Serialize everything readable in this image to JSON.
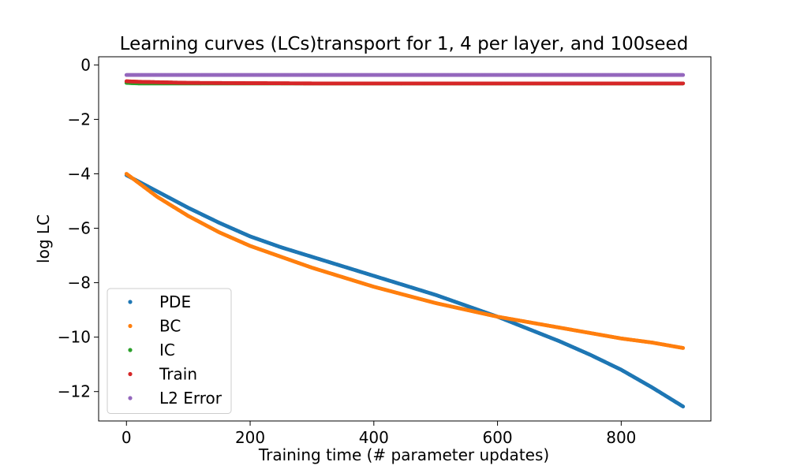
{
  "chart_data": {
    "type": "scatter",
    "title": "Learning curves (LCs)transport for 1, 4 per layer, and 100seed",
    "xlabel": "Training time (# parameter updates)",
    "ylabel": "log LC",
    "xlim": [
      -45,
      945
    ],
    "ylim": [
      -13.08,
      0.3
    ],
    "xticks": [
      0,
      200,
      400,
      600,
      800
    ],
    "yticks": [
      0,
      -2,
      -4,
      -6,
      -8,
      -10,
      -12
    ],
    "xtick_labels": [
      "0",
      "200",
      "400",
      "600",
      "800"
    ],
    "ytick_labels": [
      "0",
      "−2",
      "−4",
      "−6",
      "−8",
      "−10",
      "−12"
    ],
    "legend_position": "lower-left",
    "series": [
      {
        "name": "PDE",
        "color": "#1f77b4",
        "x": [
          0,
          50,
          100,
          150,
          200,
          250,
          300,
          350,
          400,
          450,
          500,
          550,
          600,
          650,
          700,
          750,
          800,
          850,
          900
        ],
        "y": [
          -4.05,
          -4.65,
          -5.25,
          -5.8,
          -6.3,
          -6.7,
          -7.05,
          -7.4,
          -7.75,
          -8.1,
          -8.45,
          -8.85,
          -9.25,
          -9.7,
          -10.15,
          -10.65,
          -11.2,
          -11.85,
          -12.55
        ]
      },
      {
        "name": "BC",
        "color": "#ff7f0e",
        "x": [
          0,
          50,
          100,
          150,
          200,
          250,
          300,
          350,
          400,
          450,
          500,
          550,
          600,
          650,
          700,
          750,
          800,
          850,
          900
        ],
        "y": [
          -4.0,
          -4.85,
          -5.55,
          -6.15,
          -6.65,
          -7.05,
          -7.45,
          -7.8,
          -8.15,
          -8.45,
          -8.75,
          -9.0,
          -9.25,
          -9.45,
          -9.65,
          -9.85,
          -10.05,
          -10.2,
          -10.4
        ]
      },
      {
        "name": "IC",
        "color": "#2ca02c",
        "x": [
          0,
          20,
          60,
          100,
          200,
          300,
          400,
          500,
          600,
          700,
          800,
          900
        ],
        "y": [
          -0.66,
          -0.68,
          -0.68,
          -0.68,
          -0.68,
          -0.68,
          -0.68,
          -0.68,
          -0.68,
          -0.68,
          -0.68,
          -0.68
        ]
      },
      {
        "name": "Train",
        "color": "#d62728",
        "x": [
          0,
          20,
          60,
          100,
          200,
          300,
          400,
          500,
          600,
          700,
          800,
          900
        ],
        "y": [
          -0.6,
          -0.62,
          -0.64,
          -0.66,
          -0.67,
          -0.68,
          -0.68,
          -0.68,
          -0.68,
          -0.68,
          -0.68,
          -0.68
        ]
      },
      {
        "name": "L2 Error",
        "color": "#9467bd",
        "x": [
          0,
          100,
          200,
          300,
          400,
          500,
          600,
          700,
          800,
          900
        ],
        "y": [
          -0.37,
          -0.37,
          -0.37,
          -0.37,
          -0.37,
          -0.37,
          -0.37,
          -0.37,
          -0.37,
          -0.37
        ]
      }
    ]
  }
}
